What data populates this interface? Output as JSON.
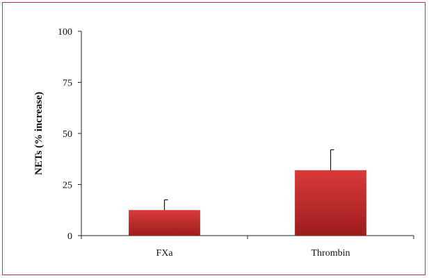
{
  "chart_data": {
    "type": "bar",
    "title": "",
    "xlabel": "",
    "ylabel": "NETs (% increase)",
    "categories": [
      "FXa",
      "Thrombin"
    ],
    "values": [
      12.5,
      32
    ],
    "errors": [
      5,
      10
    ],
    "ylim": [
      0,
      100
    ],
    "yticks": [
      0,
      25,
      50,
      75,
      100
    ],
    "grid": false,
    "legend": "none",
    "bar_color_top": "#d93a3a",
    "bar_color_bottom": "#9e1c1c",
    "frame_color": "#b23a3a"
  }
}
